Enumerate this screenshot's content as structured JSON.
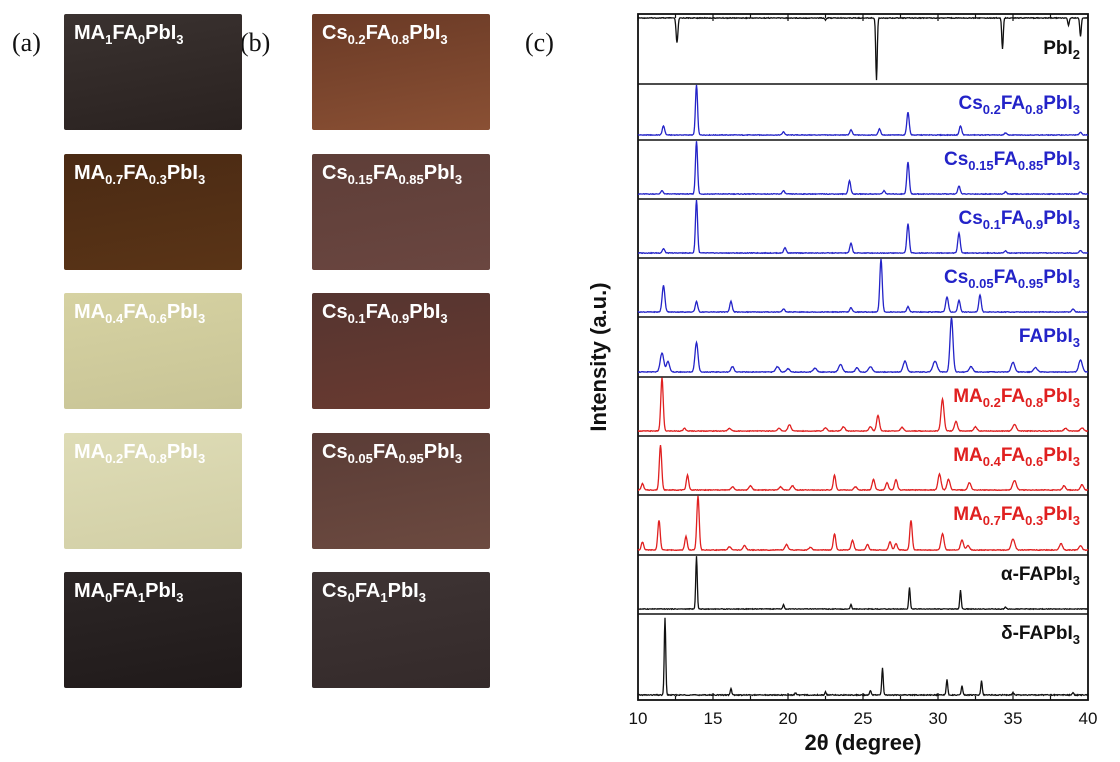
{
  "panels": {
    "a": "(a)",
    "b": "(b)",
    "c": "(c)"
  },
  "films_a": [
    {
      "parts": [
        [
          "MA",
          ""
        ],
        [
          "1",
          "sub"
        ],
        [
          "FA",
          ""
        ],
        [
          "0",
          "sub"
        ],
        [
          "PbI",
          ""
        ],
        [
          "3",
          "sub"
        ]
      ],
      "color_top": "#3a3230",
      "color_bottom": "#2a2220"
    },
    {
      "parts": [
        [
          "MA",
          ""
        ],
        [
          "0.7",
          "sub"
        ],
        [
          "FA",
          ""
        ],
        [
          "0.3",
          "sub"
        ],
        [
          "PbI",
          ""
        ],
        [
          "3",
          "sub"
        ]
      ],
      "color_top": "#4a2a14",
      "color_bottom": "#5a3416"
    },
    {
      "parts": [
        [
          "MA",
          ""
        ],
        [
          "0.4",
          "sub"
        ],
        [
          "FA",
          ""
        ],
        [
          "0.6",
          "sub"
        ],
        [
          "PbI",
          ""
        ],
        [
          "3",
          "sub"
        ]
      ],
      "color_top": "#d6d2a2",
      "color_bottom": "#c8c496"
    },
    {
      "parts": [
        [
          "MA",
          ""
        ],
        [
          "0.2",
          "sub"
        ],
        [
          "FA",
          ""
        ],
        [
          "0.8",
          "sub"
        ],
        [
          "PbI",
          ""
        ],
        [
          "3",
          "sub"
        ]
      ],
      "color_top": "#dedcb6",
      "color_bottom": "#d2cfa6"
    },
    {
      "parts": [
        [
          "MA",
          ""
        ],
        [
          "0",
          "sub"
        ],
        [
          "FA",
          ""
        ],
        [
          "1",
          "sub"
        ],
        [
          "PbI",
          ""
        ],
        [
          "3",
          "sub"
        ]
      ],
      "color_top": "#2c2626",
      "color_bottom": "#201a1a"
    }
  ],
  "films_b": [
    {
      "parts": [
        [
          "Cs",
          ""
        ],
        [
          "0.2",
          "sub"
        ],
        [
          "FA",
          ""
        ],
        [
          "0.8",
          "sub"
        ],
        [
          "PbI",
          ""
        ],
        [
          "3",
          "sub"
        ]
      ],
      "color_top": "#6a3a26",
      "color_bottom": "#8a5034"
    },
    {
      "parts": [
        [
          "Cs",
          ""
        ],
        [
          "0.15",
          "sub"
        ],
        [
          "FA",
          ""
        ],
        [
          "0.85",
          "sub"
        ],
        [
          "PbI",
          ""
        ],
        [
          "3",
          "sub"
        ]
      ],
      "color_top": "#5e3e38",
      "color_bottom": "#6a4640"
    },
    {
      "parts": [
        [
          "Cs",
          ""
        ],
        [
          "0.1",
          "sub"
        ],
        [
          "FA",
          ""
        ],
        [
          "0.9",
          "sub"
        ],
        [
          "PbI",
          ""
        ],
        [
          "3",
          "sub"
        ]
      ],
      "color_top": "#553530",
      "color_bottom": "#6a3a30"
    },
    {
      "parts": [
        [
          "Cs",
          ""
        ],
        [
          "0.05",
          "sub"
        ],
        [
          "FA",
          ""
        ],
        [
          "0.95",
          "sub"
        ],
        [
          "PbI",
          ""
        ],
        [
          "3",
          "sub"
        ]
      ],
      "color_top": "#5a3c36",
      "color_bottom": "#6c4a40"
    },
    {
      "parts": [
        [
          "Cs",
          ""
        ],
        [
          "0",
          "sub"
        ],
        [
          "FA",
          ""
        ],
        [
          "1",
          "sub"
        ],
        [
          "PbI",
          ""
        ],
        [
          "3",
          "sub"
        ]
      ],
      "color_top": "#3e3434",
      "color_bottom": "#342a2a"
    }
  ],
  "chart_data": {
    "type": "line",
    "xlabel": "2θ (degree)",
    "ylabel": "Intensity (a.u.)",
    "xlim": [
      10,
      40
    ],
    "xticks": [
      10,
      15,
      20,
      25,
      30,
      35,
      40
    ],
    "colors": {
      "black": "#111111",
      "blue": "#2323c8",
      "red": "#e02020"
    },
    "series": [
      {
        "parts": [
          [
            "PbI",
            ""
          ],
          [
            "2",
            "sub"
          ]
        ],
        "color": "black",
        "inverted": true,
        "peaks": [
          [
            12.6,
            0.4,
            0.06
          ],
          [
            22.5,
            0.03,
            0.05
          ],
          [
            25.9,
            1.0,
            0.05
          ],
          [
            34.3,
            0.5,
            0.05
          ],
          [
            38.7,
            0.12,
            0.05
          ],
          [
            39.5,
            0.3,
            0.05
          ]
        ]
      },
      {
        "parts": [
          [
            "Cs",
            ""
          ],
          [
            "0.2",
            "sub"
          ],
          [
            "FA",
            ""
          ],
          [
            "0.8",
            "sub"
          ],
          [
            "PbI",
            ""
          ],
          [
            "3",
            "sub"
          ]
        ],
        "color": "blue",
        "peaks": [
          [
            11.7,
            0.18,
            0.08
          ],
          [
            13.9,
            1.0,
            0.07
          ],
          [
            19.7,
            0.06,
            0.08
          ],
          [
            24.2,
            0.1,
            0.08
          ],
          [
            26.1,
            0.12,
            0.08
          ],
          [
            28.0,
            0.45,
            0.08
          ],
          [
            31.5,
            0.18,
            0.08
          ],
          [
            34.5,
            0.04,
            0.08
          ],
          [
            39.5,
            0.05,
            0.08
          ]
        ]
      },
      {
        "parts": [
          [
            "Cs",
            ""
          ],
          [
            "0.15",
            "sub"
          ],
          [
            "FA",
            ""
          ],
          [
            "0.85",
            "sub"
          ],
          [
            "PbI",
            ""
          ],
          [
            "3",
            "sub"
          ]
        ],
        "color": "blue",
        "peaks": [
          [
            11.6,
            0.06,
            0.08
          ],
          [
            13.9,
            1.0,
            0.07
          ],
          [
            19.7,
            0.06,
            0.08
          ],
          [
            24.1,
            0.25,
            0.08
          ],
          [
            26.4,
            0.06,
            0.08
          ],
          [
            28.0,
            0.6,
            0.08
          ],
          [
            31.4,
            0.15,
            0.08
          ],
          [
            34.5,
            0.04,
            0.08
          ],
          [
            39.5,
            0.04,
            0.08
          ]
        ]
      },
      {
        "parts": [
          [
            "Cs",
            ""
          ],
          [
            "0.1",
            "sub"
          ],
          [
            "FA",
            ""
          ],
          [
            "0.9",
            "sub"
          ],
          [
            "PbI",
            ""
          ],
          [
            "3",
            "sub"
          ]
        ],
        "color": "blue",
        "peaks": [
          [
            11.7,
            0.08,
            0.08
          ],
          [
            13.9,
            1.0,
            0.07
          ],
          [
            19.8,
            0.1,
            0.08
          ],
          [
            24.2,
            0.18,
            0.08
          ],
          [
            28.0,
            0.55,
            0.08
          ],
          [
            31.4,
            0.38,
            0.08
          ],
          [
            34.5,
            0.04,
            0.08
          ],
          [
            39.5,
            0.05,
            0.08
          ]
        ]
      },
      {
        "parts": [
          [
            "Cs",
            ""
          ],
          [
            "0.05",
            "sub"
          ],
          [
            "FA",
            ""
          ],
          [
            "0.95",
            "sub"
          ],
          [
            "PbI",
            ""
          ],
          [
            "3",
            "sub"
          ]
        ],
        "color": "blue",
        "peaks": [
          [
            11.7,
            0.5,
            0.09
          ],
          [
            13.9,
            0.2,
            0.08
          ],
          [
            16.2,
            0.2,
            0.08
          ],
          [
            19.7,
            0.06,
            0.08
          ],
          [
            24.2,
            0.08,
            0.08
          ],
          [
            26.2,
            1.0,
            0.08
          ],
          [
            28.0,
            0.1,
            0.08
          ],
          [
            30.6,
            0.28,
            0.09
          ],
          [
            31.4,
            0.22,
            0.08
          ],
          [
            32.8,
            0.32,
            0.08
          ],
          [
            39.0,
            0.06,
            0.08
          ]
        ]
      },
      {
        "parts": [
          [
            "FAPbI",
            ""
          ],
          [
            "3",
            "sub"
          ]
        ],
        "color": "blue",
        "peaks": [
          [
            11.6,
            0.35,
            0.12
          ],
          [
            12.0,
            0.2,
            0.1
          ],
          [
            13.9,
            0.55,
            0.1
          ],
          [
            16.3,
            0.1,
            0.1
          ],
          [
            19.3,
            0.1,
            0.12
          ],
          [
            20.0,
            0.06,
            0.1
          ],
          [
            21.8,
            0.07,
            0.12
          ],
          [
            23.5,
            0.14,
            0.12
          ],
          [
            24.6,
            0.08,
            0.1
          ],
          [
            25.5,
            0.1,
            0.12
          ],
          [
            27.8,
            0.2,
            0.12
          ],
          [
            29.8,
            0.2,
            0.14
          ],
          [
            30.9,
            1.0,
            0.1
          ],
          [
            32.2,
            0.1,
            0.12
          ],
          [
            35.0,
            0.18,
            0.12
          ],
          [
            36.5,
            0.08,
            0.12
          ],
          [
            39.5,
            0.22,
            0.12
          ]
        ]
      },
      {
        "parts": [
          [
            "MA",
            ""
          ],
          [
            "0.2",
            "sub"
          ],
          [
            "FA",
            ""
          ],
          [
            "0.8",
            "sub"
          ],
          [
            "PbI",
            ""
          ],
          [
            "3",
            "sub"
          ]
        ],
        "color": "red",
        "peaks": [
          [
            11.6,
            1.0,
            0.08
          ],
          [
            13.1,
            0.05,
            0.08
          ],
          [
            16.1,
            0.05,
            0.1
          ],
          [
            19.4,
            0.05,
            0.1
          ],
          [
            20.1,
            0.12,
            0.1
          ],
          [
            22.5,
            0.06,
            0.1
          ],
          [
            23.7,
            0.08,
            0.1
          ],
          [
            25.5,
            0.08,
            0.1
          ],
          [
            26.0,
            0.3,
            0.09
          ],
          [
            27.6,
            0.07,
            0.1
          ],
          [
            30.3,
            0.6,
            0.1
          ],
          [
            31.2,
            0.18,
            0.1
          ],
          [
            32.5,
            0.08,
            0.1
          ],
          [
            35.1,
            0.12,
            0.12
          ],
          [
            38.5,
            0.05,
            0.1
          ],
          [
            39.6,
            0.06,
            0.1
          ]
        ]
      },
      {
        "parts": [
          [
            "MA",
            ""
          ],
          [
            "0.4",
            "sub"
          ],
          [
            "FA",
            ""
          ],
          [
            "0.6",
            "sub"
          ],
          [
            "PbI",
            ""
          ],
          [
            "3",
            "sub"
          ]
        ],
        "color": "red",
        "peaks": [
          [
            10.3,
            0.12,
            0.08
          ],
          [
            11.5,
            0.85,
            0.08
          ],
          [
            13.3,
            0.28,
            0.08
          ],
          [
            16.3,
            0.06,
            0.1
          ],
          [
            17.5,
            0.08,
            0.1
          ],
          [
            19.5,
            0.06,
            0.1
          ],
          [
            20.3,
            0.08,
            0.1
          ],
          [
            23.1,
            0.28,
            0.08
          ],
          [
            24.5,
            0.06,
            0.1
          ],
          [
            25.7,
            0.2,
            0.09
          ],
          [
            26.6,
            0.14,
            0.09
          ],
          [
            27.2,
            0.2,
            0.09
          ],
          [
            30.1,
            0.3,
            0.1
          ],
          [
            30.7,
            0.2,
            0.1
          ],
          [
            32.1,
            0.14,
            0.1
          ],
          [
            35.1,
            0.18,
            0.12
          ],
          [
            38.4,
            0.08,
            0.1
          ],
          [
            39.6,
            0.1,
            0.1
          ]
        ]
      },
      {
        "parts": [
          [
            "MA",
            ""
          ],
          [
            "0.7",
            "sub"
          ],
          [
            "FA",
            ""
          ],
          [
            "0.3",
            "sub"
          ],
          [
            "PbI",
            ""
          ],
          [
            "3",
            "sub"
          ]
        ],
        "color": "red",
        "peaks": [
          [
            10.3,
            0.15,
            0.08
          ],
          [
            11.4,
            0.55,
            0.08
          ],
          [
            13.2,
            0.25,
            0.08
          ],
          [
            14.0,
            1.0,
            0.08
          ],
          [
            16.1,
            0.06,
            0.1
          ],
          [
            17.1,
            0.08,
            0.1
          ],
          [
            19.9,
            0.1,
            0.1
          ],
          [
            21.5,
            0.05,
            0.1
          ],
          [
            23.1,
            0.3,
            0.08
          ],
          [
            24.3,
            0.18,
            0.09
          ],
          [
            25.3,
            0.1,
            0.09
          ],
          [
            26.8,
            0.15,
            0.09
          ],
          [
            27.2,
            0.12,
            0.09
          ],
          [
            28.2,
            0.55,
            0.08
          ],
          [
            30.3,
            0.3,
            0.1
          ],
          [
            31.6,
            0.18,
            0.1
          ],
          [
            32.0,
            0.08,
            0.1
          ],
          [
            35.0,
            0.2,
            0.12
          ],
          [
            38.2,
            0.12,
            0.1
          ],
          [
            39.5,
            0.08,
            0.1
          ]
        ]
      },
      {
        "parts": [
          [
            "α-FAPbI",
            ""
          ],
          [
            "3",
            "sub"
          ]
        ],
        "color": "black",
        "peaks": [
          [
            13.9,
            1.0,
            0.05
          ],
          [
            19.7,
            0.08,
            0.05
          ],
          [
            24.2,
            0.08,
            0.05
          ],
          [
            28.1,
            0.4,
            0.05
          ],
          [
            31.5,
            0.35,
            0.05
          ],
          [
            34.5,
            0.04,
            0.05
          ]
        ]
      },
      {
        "parts": [
          [
            "δ-FAPbI",
            ""
          ],
          [
            "3",
            "sub"
          ]
        ],
        "color": "black",
        "peaks": [
          [
            11.8,
            1.0,
            0.05
          ],
          [
            16.2,
            0.08,
            0.05
          ],
          [
            20.5,
            0.03,
            0.05
          ],
          [
            22.5,
            0.04,
            0.05
          ],
          [
            25.5,
            0.06,
            0.05
          ],
          [
            26.3,
            0.35,
            0.05
          ],
          [
            30.6,
            0.2,
            0.05
          ],
          [
            31.6,
            0.12,
            0.05
          ],
          [
            32.9,
            0.18,
            0.05
          ],
          [
            35.0,
            0.03,
            0.05
          ],
          [
            39.0,
            0.03,
            0.05
          ]
        ]
      }
    ]
  }
}
